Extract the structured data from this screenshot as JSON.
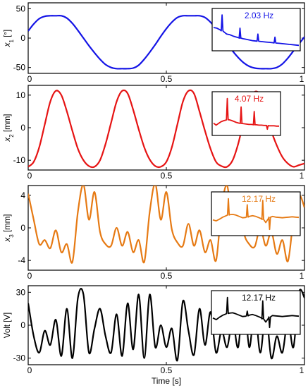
{
  "chart_data": [
    {
      "type": "line",
      "ylabel": "x1 [°]",
      "ylabel_main": "x",
      "ylabel_sub": "1",
      "ylabel_unit": " [°]",
      "yticks": [
        "50",
        "0",
        "-50"
      ],
      "yticks_values": [
        50,
        0,
        -50
      ],
      "ylim": [
        -60,
        60
      ],
      "xticks": [
        "0",
        "0.5",
        "1"
      ],
      "xticks_values": [
        0,
        0.5,
        1
      ],
      "xlim": [
        0,
        1
      ],
      "color": "#1414e6",
      "series": [
        {
          "x": [
            0,
            0.02,
            0.04,
            0.06,
            0.08,
            0.1,
            0.12,
            0.14,
            0.16,
            0.18,
            0.2,
            0.22,
            0.24,
            0.26,
            0.28,
            0.3,
            0.32,
            0.34,
            0.36,
            0.38,
            0.4,
            0.42,
            0.44,
            0.46,
            0.48,
            0.5,
            0.52,
            0.54,
            0.56,
            0.58,
            0.6,
            0.62,
            0.64,
            0.66,
            0.68,
            0.7,
            0.72,
            0.74,
            0.76,
            0.78,
            0.8,
            0.82,
            0.84,
            0.86,
            0.88,
            0.9,
            0.92,
            0.94,
            0.96,
            0.98,
            1
          ],
          "values": [
            12,
            24,
            33,
            37,
            38,
            38,
            38,
            34,
            25,
            13,
            0,
            -13,
            -25,
            -36,
            -45,
            -50,
            -52,
            -52,
            -52,
            -51,
            -46,
            -36,
            -24,
            -11,
            3,
            16,
            27,
            35,
            38,
            38,
            38,
            38,
            35,
            27,
            16,
            4,
            -9,
            -22,
            -33,
            -42,
            -48,
            -51,
            -52,
            -52,
            -52,
            -50,
            -44,
            -34,
            -22,
            -10,
            2
          ]
        }
      ],
      "inset": {
        "label": "2.03 Hz",
        "color": "#1414e6",
        "spectrum": {
          "baseline": [
            0.62,
            0.6,
            0.55,
            0.5,
            0.42,
            0.4,
            0.36,
            0.33,
            0.3,
            0.28,
            0.26,
            0.24,
            0.22,
            0.21,
            0.2,
            0.19,
            0.18,
            0.17,
            0.16,
            0.15,
            0.14,
            0.13,
            0.12,
            0.11,
            0.1,
            0.09,
            0.08
          ],
          "peaks": [
            {
              "f": 0.1,
              "a": 1.0
            },
            {
              "f": 0.31,
              "a": 0.6
            },
            {
              "f": 0.52,
              "a": 0.42
            },
            {
              "f": 0.72,
              "a": 0.33
            }
          ]
        }
      }
    },
    {
      "type": "line",
      "ylabel": "x2 [mm]",
      "ylabel_main": "x",
      "ylabel_sub": "2",
      "ylabel_unit": " [mm]",
      "yticks": [
        "10",
        "0",
        "-10"
      ],
      "yticks_values": [
        10,
        0,
        -10
      ],
      "ylim": [
        -13,
        13
      ],
      "xticks": [
        "0",
        "0.5",
        "1"
      ],
      "xticks_values": [
        0,
        0.5,
        1
      ],
      "xlim": [
        0,
        1
      ],
      "color": "#e61414",
      "series": [
        {
          "x": [
            0,
            0.02,
            0.04,
            0.06,
            0.08,
            0.1,
            0.12,
            0.14,
            0.16,
            0.18,
            0.2,
            0.22,
            0.24,
            0.26,
            0.28,
            0.3,
            0.32,
            0.34,
            0.36,
            0.38,
            0.4,
            0.42,
            0.44,
            0.46,
            0.48,
            0.5,
            0.52,
            0.54,
            0.56,
            0.58,
            0.6,
            0.62,
            0.64,
            0.66,
            0.68,
            0.7,
            0.72,
            0.74,
            0.76,
            0.78,
            0.8,
            0.82,
            0.84,
            0.86,
            0.88,
            0.9,
            0.92,
            0.94,
            0.96,
            0.98,
            1
          ],
          "values": [
            -12,
            -10.5,
            -6,
            1,
            8,
            11.3,
            10,
            5,
            -1,
            -6.5,
            -10,
            -11.8,
            -12,
            -10,
            -5,
            1.5,
            8,
            11.3,
            10.5,
            5.5,
            -0.5,
            -6,
            -9.8,
            -11.8,
            -12,
            -10.5,
            -6,
            1,
            8,
            11.3,
            10.5,
            5,
            -1,
            -6.5,
            -10.5,
            -11.8,
            -12,
            -10,
            -5,
            2,
            8,
            11,
            10,
            5,
            -1,
            -5.5,
            -9,
            -11,
            -12,
            -11.5,
            -11
          ]
        }
      ],
      "inset": {
        "label": "4.07 Hz",
        "color": "#e61414",
        "spectrum": {
          "baseline": [
            0.28,
            0.22,
            0.27,
            0.32,
            0.35,
            0.37,
            0.38,
            0.36,
            0.33,
            0.3,
            0.28,
            0.27,
            0.26,
            0.25,
            0.24,
            0.24,
            0.23,
            0.23,
            0.22,
            0.22,
            0.21,
            0.21,
            0.2,
            0.2,
            0.2,
            0.19,
            0.19
          ],
          "peaks": [
            {
              "f": 0.21,
              "a": 1.0
            },
            {
              "f": 0.42,
              "a": 0.75
            },
            {
              "f": 0.62,
              "a": 0.62
            },
            {
              "f": 0.82,
              "a": 0.1
            }
          ]
        }
      }
    },
    {
      "type": "line",
      "ylabel": "x3 [mm]",
      "ylabel_main": "x",
      "ylabel_sub": "3",
      "ylabel_unit": " [mm]",
      "yticks": [
        "4",
        "0",
        "-4"
      ],
      "yticks_values": [
        4,
        0,
        -4
      ],
      "ylim": [
        -5.2,
        5.2
      ],
      "xticks": [
        "0",
        "0.5",
        "1"
      ],
      "xticks_values": [
        0,
        0.5,
        1
      ],
      "xlim": [
        0,
        1
      ],
      "color": "#e67a14",
      "series": [
        {
          "x": [
            0,
            0.02,
            0.04,
            0.06,
            0.08,
            0.1,
            0.12,
            0.14,
            0.16,
            0.18,
            0.2,
            0.22,
            0.24,
            0.26,
            0.28,
            0.3,
            0.32,
            0.34,
            0.36,
            0.38,
            0.4,
            0.42,
            0.44,
            0.46,
            0.48,
            0.5,
            0.52,
            0.54,
            0.56,
            0.58,
            0.6,
            0.62,
            0.64,
            0.66,
            0.68,
            0.7,
            0.72,
            0.74,
            0.76,
            0.78,
            0.8,
            0.82,
            0.84,
            0.86,
            0.88,
            0.9,
            0.92,
            0.94,
            0.96,
            0.98,
            1
          ],
          "values": [
            4.2,
            1,
            -2,
            -1.5,
            -2.5,
            -0.3,
            -3,
            -2,
            -4.2,
            2,
            5.3,
            1,
            4.4,
            -0.5,
            -2,
            -2.2,
            0,
            -2.2,
            -0.5,
            -3,
            -1.5,
            -4.2,
            2,
            5.4,
            1,
            4.4,
            -0.2,
            -1.8,
            -2.2,
            0.5,
            -2.2,
            -0.3,
            -3,
            -1.5,
            -4,
            2.5,
            5.2,
            0.7,
            4.3,
            -0.5,
            -2,
            -2.3,
            0,
            -2.2,
            -0.5,
            -3.2,
            -1.5,
            -4.1,
            1,
            4,
            2.5
          ]
        }
      ],
      "inset": {
        "label": "12.17 Hz",
        "color": "#e67a14",
        "spectrum": {
          "baseline": [
            0.38,
            0.35,
            0.4,
            0.46,
            0.5,
            0.53,
            0.54,
            0.52,
            0.48,
            0.44,
            0.45,
            0.48,
            0.5,
            0.48,
            0.44,
            0.4,
            0.3,
            0.45,
            0.48,
            0.46,
            0.45,
            0.44,
            0.45,
            0.46,
            0.47,
            0.46,
            0.45
          ],
          "peaks": [
            {
              "f": 0.18,
              "a": 1.0
            },
            {
              "f": 0.4,
              "a": 0.82
            },
            {
              "f": 0.58,
              "a": 0.95
            },
            {
              "f": 0.66,
              "a": 0.1
            }
          ]
        }
      }
    },
    {
      "type": "line",
      "ylabel": "Volt  [V]",
      "ylabel_main": "Volt",
      "ylabel_sub": "",
      "ylabel_unit": "  [V]",
      "yticks": [
        "30",
        "0",
        "-30"
      ],
      "yticks_values": [
        30,
        0,
        -30
      ],
      "ylim": [
        -36,
        36
      ],
      "xticks": [
        "0",
        "0.5",
        "1"
      ],
      "xticks_values": [
        0,
        0.5,
        1
      ],
      "xlim": [
        0,
        1
      ],
      "xlabel": "Time [s]",
      "color": "#000000",
      "series": [
        {
          "x": [
            0,
            0.02,
            0.04,
            0.06,
            0.08,
            0.1,
            0.12,
            0.14,
            0.16,
            0.18,
            0.2,
            0.22,
            0.24,
            0.26,
            0.28,
            0.3,
            0.32,
            0.34,
            0.36,
            0.38,
            0.4,
            0.42,
            0.44,
            0.46,
            0.48,
            0.5,
            0.52,
            0.54,
            0.56,
            0.58,
            0.6,
            0.62,
            0.64,
            0.66,
            0.68,
            0.7,
            0.72,
            0.74,
            0.76,
            0.78,
            0.8,
            0.82,
            0.84,
            0.86,
            0.88,
            0.9,
            0.92,
            0.94,
            0.96,
            0.98,
            1
          ],
          "values": [
            20,
            -10,
            -25,
            -5,
            -18,
            5,
            -28,
            15,
            -30,
            25,
            28,
            -25,
            -3,
            15,
            -10,
            -25,
            10,
            -28,
            20,
            -22,
            28,
            -30,
            28,
            -20,
            0,
            -20,
            -3,
            -32,
            22,
            -5,
            -27,
            15,
            -18,
            12,
            -25,
            -5,
            -20,
            5,
            -20,
            28,
            -20,
            15,
            -25,
            12,
            -30,
            -10,
            -25,
            5,
            -20,
            30,
            25
          ]
        }
      ],
      "inset": {
        "label": "12.17 Hz",
        "color": "#000000",
        "spectrum": {
          "baseline": [
            0.4,
            0.35,
            0.42,
            0.48,
            0.52,
            0.54,
            0.55,
            0.52,
            0.48,
            0.44,
            0.45,
            0.48,
            0.5,
            0.47,
            0.43,
            0.38,
            0.28,
            0.42,
            0.47,
            0.46,
            0.45,
            0.44,
            0.45,
            0.46,
            0.47,
            0.46,
            0.45
          ],
          "peaks": [
            {
              "f": 0.17,
              "a": 1.0
            },
            {
              "f": 0.4,
              "a": 0.6
            },
            {
              "f": 0.58,
              "a": 0.9
            },
            {
              "f": 0.66,
              "a": 0.12
            }
          ]
        }
      }
    }
  ]
}
